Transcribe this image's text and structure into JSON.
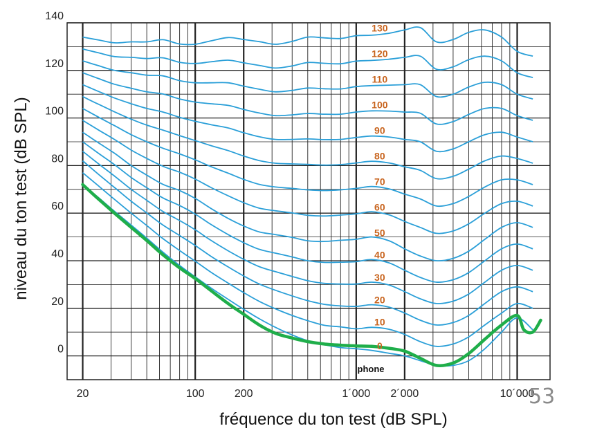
{
  "slide_number": "53",
  "colors": {
    "curve": "#2a9fd8",
    "threshold": "#1fae4a",
    "phon_label": "#c8641e",
    "grid": "#222222"
  },
  "chart_data": {
    "type": "line",
    "title": "",
    "xlabel": "fréquence du ton test (dB SPL)",
    "ylabel": "niveau du ton test (dB SPL)",
    "xscale": "log",
    "xlim": [
      16,
      16000
    ],
    "ylim": [
      -10,
      140
    ],
    "grid": true,
    "x_tick_labels": [
      {
        "value": 20,
        "label": "20"
      },
      {
        "value": 100,
        "label": "100"
      },
      {
        "value": 200,
        "label": "200"
      },
      {
        "value": 1000,
        "label": "1´000"
      },
      {
        "value": 2000,
        "label": "2´000"
      },
      {
        "value": 10000,
        "label": "10´000"
      }
    ],
    "y_tick_labels": [
      {
        "value": 0,
        "label": "0"
      },
      {
        "value": 20,
        "label": "20"
      },
      {
        "value": 40,
        "label": "40"
      },
      {
        "value": 60,
        "label": "60"
      },
      {
        "value": 80,
        "label": "80"
      },
      {
        "value": 100,
        "label": "100"
      },
      {
        "value": 120,
        "label": "120"
      },
      {
        "value": 140,
        "label": "140"
      }
    ],
    "unit_label": "phone",
    "phon_labels": [
      "0",
      "10",
      "20",
      "30",
      "40",
      "50",
      "60",
      "70",
      "80",
      "90",
      "100",
      "110",
      "120",
      "130"
    ],
    "x": [
      20,
      25,
      31.5,
      40,
      50,
      63,
      80,
      100,
      125,
      160,
      200,
      250,
      315,
      400,
      500,
      630,
      800,
      1000,
      1250,
      1600,
      2000,
      2500,
      3150,
      4000,
      5000,
      6300,
      8000,
      10000,
      12500
    ],
    "series": [
      {
        "phon": 0,
        "values": [
          72,
          66.6,
          60.8,
          55,
          49.5,
          43.6,
          38,
          33.2,
          28.6,
          23.8,
          19.6,
          15.6,
          12,
          8.8,
          6.4,
          4.7,
          3.5,
          3,
          2.3,
          1.1,
          0,
          -2,
          -4,
          -4,
          -2,
          3,
          10,
          16,
          11
        ]
      },
      {
        "phon": 10,
        "values": [
          77,
          71.5,
          65.8,
          60,
          54.8,
          49.3,
          44.3,
          39.8,
          35.2,
          30.6,
          26.6,
          22.9,
          19.8,
          17,
          14.8,
          12.9,
          12.2,
          11.4,
          12,
          11.2,
          9,
          6,
          4,
          5,
          8,
          13,
          18,
          22,
          20
        ]
      },
      {
        "phon": 20,
        "values": [
          82,
          76.4,
          70.8,
          65,
          60.1,
          55,
          50.6,
          46.4,
          41.9,
          37.4,
          33.6,
          30.2,
          27.6,
          25.2,
          23.2,
          21.7,
          21,
          20.8,
          21.5,
          20.5,
          18,
          15,
          13,
          14,
          17,
          22,
          27,
          29,
          27
        ]
      },
      {
        "phon": 30,
        "values": [
          86,
          80.8,
          75.6,
          70,
          65.4,
          60.7,
          56.9,
          53,
          48.6,
          44.2,
          40.6,
          37.5,
          35.4,
          33.4,
          31.6,
          30.5,
          30.2,
          30.2,
          31,
          29.8,
          27,
          24,
          22,
          23,
          26,
          31,
          36,
          38,
          36
        ]
      },
      {
        "phon": 40,
        "values": [
          90,
          85.2,
          80.4,
          75,
          70.7,
          66.4,
          63.2,
          59.6,
          55.3,
          51,
          47.6,
          44.8,
          43.2,
          41.6,
          40,
          39.3,
          39.4,
          39.6,
          40.5,
          39.1,
          36,
          33,
          31,
          32,
          35,
          40,
          45,
          47,
          45
        ]
      },
      {
        "phon": 50,
        "values": [
          94,
          89.6,
          85.2,
          80,
          76,
          72.1,
          69.5,
          66.2,
          62,
          57.8,
          54.6,
          52.1,
          51,
          49.8,
          48.4,
          48.1,
          48.6,
          49,
          50,
          48.4,
          45,
          42,
          40,
          41,
          44,
          49,
          54,
          56,
          54
        ]
      },
      {
        "phon": 60,
        "values": [
          99,
          95,
          91,
          86.5,
          83,
          79.7,
          77.2,
          74.3,
          70.8,
          67.3,
          64.4,
          62.1,
          61,
          60.1,
          59.1,
          58.8,
          59.2,
          59.7,
          60.6,
          59.3,
          56.5,
          54,
          51.5,
          52.5,
          55.5,
          60,
          64,
          65,
          63
        ]
      },
      {
        "phon": 70,
        "values": [
          104,
          100.4,
          96.8,
          93,
          90,
          87.3,
          84.9,
          82.4,
          79.6,
          76.8,
          74.2,
          72.1,
          71,
          70.4,
          69.8,
          69.5,
          69.8,
          70.4,
          71.2,
          70.2,
          68,
          66,
          63,
          64,
          67,
          71,
          74,
          74,
          72
        ]
      },
      {
        "phon": 80,
        "values": [
          109,
          105.8,
          102.6,
          99.5,
          97,
          94.9,
          92.6,
          90.5,
          88.4,
          86.3,
          84,
          82.1,
          81,
          80.7,
          80.5,
          80.2,
          80.4,
          81.1,
          81.8,
          81.1,
          79.5,
          78,
          74.5,
          75.5,
          78.5,
          82,
          84,
          83,
          81
        ]
      },
      {
        "phon": 90,
        "values": [
          114,
          111.2,
          108.4,
          106,
          104,
          102.5,
          100.3,
          98.6,
          97.2,
          95.8,
          93.8,
          92.1,
          91,
          91,
          91.2,
          90.9,
          91,
          91.8,
          92.4,
          92,
          91,
          90,
          86,
          87,
          90,
          93,
          94,
          92,
          90
        ]
      },
      {
        "phon": 100,
        "values": [
          119,
          116.6,
          114.2,
          112.5,
          111,
          110.1,
          108,
          106.7,
          106,
          105.3,
          103.6,
          102.1,
          101,
          101.3,
          101.9,
          101.6,
          101.6,
          102.5,
          103,
          102.9,
          102.5,
          102,
          97.5,
          98.5,
          101.5,
          104,
          104,
          101,
          99
        ]
      },
      {
        "phon": 110,
        "values": [
          124,
          122,
          120,
          119,
          118,
          117.7,
          115.7,
          114.8,
          114.8,
          114.8,
          113.4,
          112.1,
          111,
          111.6,
          112.6,
          112.3,
          112.2,
          113.2,
          113.6,
          113.8,
          114,
          114,
          109,
          110,
          113,
          115,
          114,
          110,
          108
        ]
      },
      {
        "phon": 120,
        "values": [
          129,
          127.4,
          125.8,
          125.5,
          125,
          125.3,
          123.4,
          122.9,
          123.6,
          124.3,
          123.2,
          122.1,
          121,
          121.9,
          123.3,
          123,
          122.8,
          123.9,
          124.2,
          124.7,
          125.5,
          126,
          120.5,
          121.5,
          124.5,
          126,
          124,
          119,
          117
        ]
      },
      {
        "phon": 130,
        "values": [
          134,
          132.8,
          131.6,
          132,
          132,
          132.9,
          131.1,
          131,
          132.4,
          133.8,
          133,
          132.1,
          131,
          132.2,
          134,
          133.7,
          133.4,
          134.6,
          134.8,
          135.6,
          137,
          138,
          132,
          133,
          136,
          137,
          134,
          128,
          126
        ]
      }
    ],
    "threshold_curve": {
      "name": "",
      "x": [
        20,
        25,
        31.5,
        40,
        50,
        63,
        80,
        100,
        125,
        160,
        200,
        250,
        315,
        400,
        500,
        630,
        800,
        1000,
        1250,
        1600,
        2000,
        2500,
        3150,
        4000,
        5000,
        6300,
        8000,
        10000,
        11000,
        12500,
        14000
      ],
      "values": [
        72,
        66,
        60,
        54,
        48.5,
        42.5,
        37,
        32.5,
        27.5,
        22,
        17.5,
        13,
        9.5,
        7.5,
        6,
        5,
        4.5,
        4.2,
        4,
        3.2,
        2,
        -1,
        -4,
        -3,
        1,
        7,
        13,
        17,
        11,
        10,
        15
      ]
    }
  }
}
